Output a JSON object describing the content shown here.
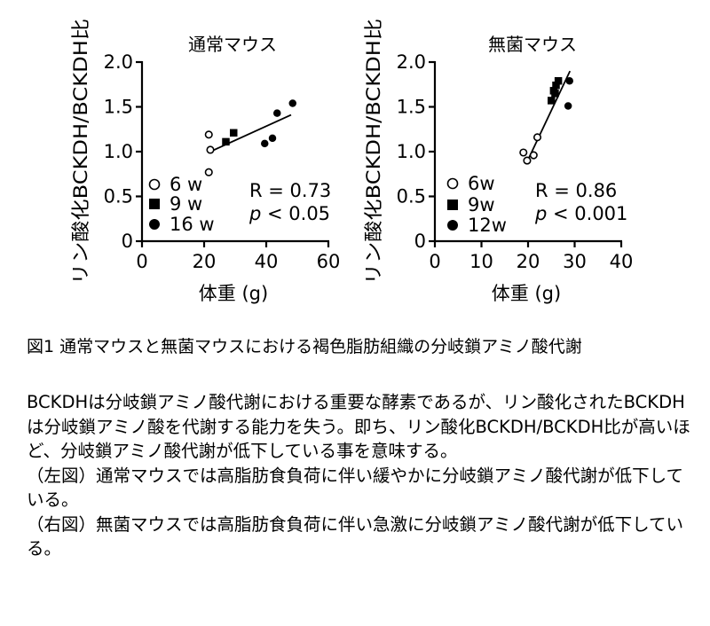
{
  "chart_data": [
    {
      "type": "scatter",
      "title": "通常マウス",
      "xlabel": "体重 (g)",
      "ylabel": "リン酸化BCKDH/BCKDH比",
      "xlim": [
        0,
        60
      ],
      "ylim": [
        0,
        2.0
      ],
      "xticks": [
        0,
        20,
        40,
        60
      ],
      "xtick_labels": [
        "0",
        "20",
        "40",
        "60"
      ],
      "yticks": [
        0,
        0.5,
        1.0,
        1.5,
        2.0
      ],
      "ytick_labels": [
        "0",
        "0.5",
        "1.0",
        "1.5",
        "2.0"
      ],
      "series": [
        {
          "name": "6 w",
          "marker": "open-circle",
          "points": [
            [
              21.5,
              1.19
            ],
            [
              22,
              1.02
            ],
            [
              21.5,
              0.77
            ]
          ]
        },
        {
          "name": "9 w",
          "marker": "square",
          "points": [
            [
              27,
              1.11
            ],
            [
              29.5,
              1.21
            ]
          ]
        },
        {
          "name": "16 w",
          "marker": "filled-circle",
          "points": [
            [
              39.5,
              1.09
            ],
            [
              42,
              1.15
            ],
            [
              43.5,
              1.43
            ],
            [
              48.5,
              1.54
            ]
          ]
        }
      ],
      "fit_line": [
        [
          22,
          1.0
        ],
        [
          48,
          1.41
        ]
      ],
      "stat_r": "R = 0.73",
      "stat_p_symbol": "p",
      "stat_p_rest": " < 0.05",
      "grid": false,
      "legend": "bottom-left"
    },
    {
      "type": "scatter",
      "title": "無菌マウス",
      "xlabel": "体重 (g)",
      "ylabel": "リン酸化BCKDH/BCKDH比",
      "xlim": [
        0,
        40
      ],
      "ylim": [
        0,
        2.0
      ],
      "xticks": [
        0,
        10,
        20,
        30,
        40
      ],
      "xtick_labels": [
        "0",
        "10",
        "20",
        "30",
        "40"
      ],
      "yticks": [
        0,
        0.5,
        1.0,
        1.5,
        2.0
      ],
      "ytick_labels": [
        "0",
        "0.5",
        "1.0",
        "1.5",
        "2.0"
      ],
      "series": [
        {
          "name": "6w",
          "marker": "open-circle",
          "points": [
            [
              19,
              0.99
            ],
            [
              19.8,
              0.9
            ],
            [
              21.2,
              0.96
            ],
            [
              22,
              1.16
            ]
          ]
        },
        {
          "name": "9w",
          "marker": "square",
          "points": [
            [
              25,
              1.57
            ],
            [
              25.5,
              1.68
            ],
            [
              26,
              1.74
            ],
            [
              25.8,
              1.65
            ],
            [
              26.5,
              1.79
            ]
          ]
        },
        {
          "name": "12w",
          "marker": "filled-circle",
          "points": [
            [
              28.6,
              1.51
            ],
            [
              28.9,
              1.79
            ]
          ]
        }
      ],
      "fit_line": [
        [
          20,
          0.91
        ],
        [
          29,
          1.9
        ]
      ],
      "stat_r": "R = 0.86",
      "stat_p_symbol": "p",
      "stat_p_rest": " < 0.001",
      "grid": false,
      "legend": "bottom-left"
    }
  ],
  "caption": "図1 通常マウスと無菌マウスにおける褐色脂肪組織の分岐鎖アミノ酸代謝",
  "paragraphs": [
    "BCKDHは分岐鎖アミノ酸代謝における重要な酵素であるが、リン酸化されたBCKDHは分岐鎖アミノ酸を代謝する能力を失う。即ち、リン酸化BCKDH/BCKDH比が高いほど、分岐鎖アミノ酸代謝が低下している事を意味する。",
    "（左図）通常マウスでは高脂肪食負荷に伴い緩やかに分岐鎖アミノ酸代謝が低下している。",
    "（右図）無菌マウスでは高脂肪食負荷に伴い急激に分岐鎖アミノ酸代謝が低下している。"
  ]
}
